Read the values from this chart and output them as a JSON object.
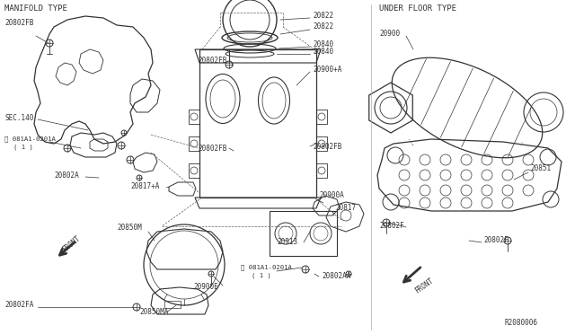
{
  "bg_color": "#ffffff",
  "line_color": "#333333",
  "text_color": "#333333",
  "title_left": "MANIFOLD TYPE",
  "title_right": "UNDER FLOOR TYPE",
  "ref_code": "R2080006",
  "figsize": [
    6.4,
    3.72
  ],
  "dpi": 100
}
